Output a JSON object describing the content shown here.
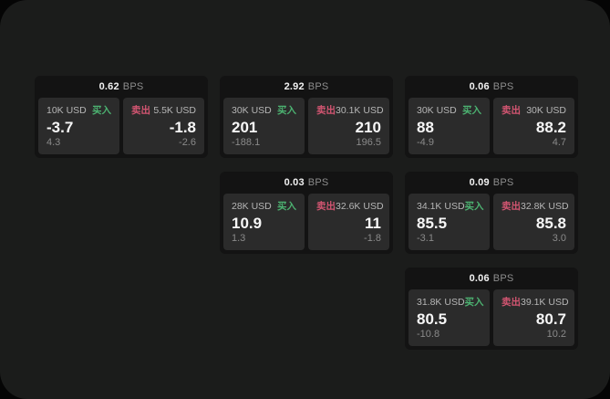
{
  "labels": {
    "bps_suffix": "BPS",
    "buy": "买入",
    "sell": "卖出"
  },
  "colors": {
    "backdrop": "#050505",
    "surface": "#1b1c1b",
    "card_background": "#131313",
    "panel_background": "#2b2b2b",
    "buy_accent": "#4cb271",
    "sell_accent": "#d25571",
    "primary_text": "#f7f7f7",
    "muted_text": "#8a8a8a"
  },
  "cards": [
    {
      "bps": "0.62",
      "buy": {
        "notional": "10K USD",
        "price": "-3.7",
        "change": "4.3"
      },
      "sell": {
        "notional": "5.5K USD",
        "price": "-1.8",
        "change": "-2.6"
      }
    },
    {
      "bps": "2.92",
      "buy": {
        "notional": "30K USD",
        "price": "201",
        "change": "-188.1"
      },
      "sell": {
        "notional": "30.1K USD",
        "price": "210",
        "change": "196.5"
      }
    },
    {
      "bps": "0.06",
      "buy": {
        "notional": "30K USD",
        "price": "88",
        "change": "-4.9"
      },
      "sell": {
        "notional": "30K USD",
        "price": "88.2",
        "change": "4.7"
      }
    },
    {
      "bps": "0.03",
      "buy": {
        "notional": "28K USD",
        "price": "10.9",
        "change": "1.3"
      },
      "sell": {
        "notional": "32.6K USD",
        "price": "11",
        "change": "-1.8"
      }
    },
    {
      "bps": "0.09",
      "buy": {
        "notional": "34.1K USD",
        "price": "85.5",
        "change": "-3.1"
      },
      "sell": {
        "notional": "32.8K USD",
        "price": "85.8",
        "change": "3.0"
      }
    },
    {
      "bps": "0.06",
      "buy": {
        "notional": "31.8K USD",
        "price": "80.5",
        "change": "-10.8"
      },
      "sell": {
        "notional": "39.1K USD",
        "price": "80.7",
        "change": "10.2"
      }
    }
  ]
}
